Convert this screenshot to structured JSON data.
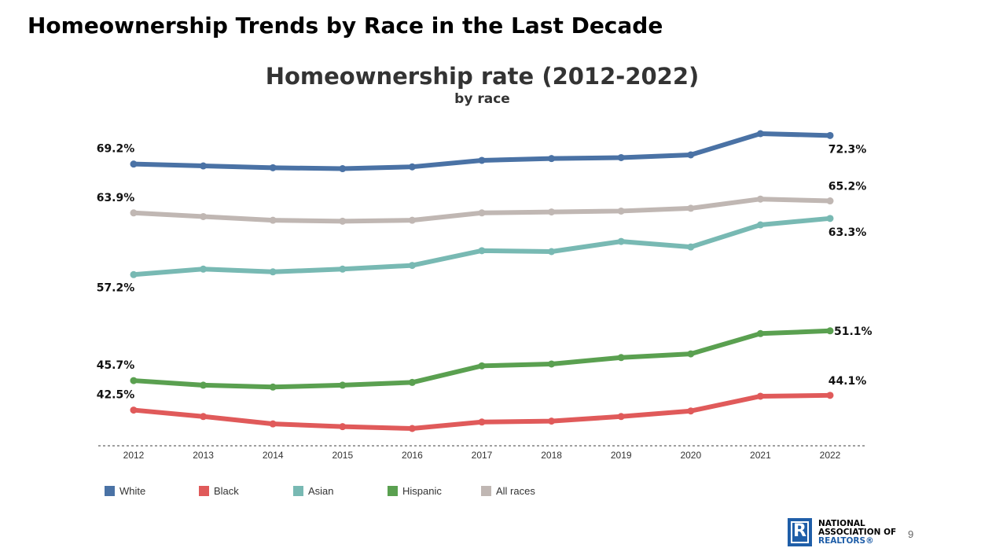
{
  "slide": {
    "title": "Homeownership Trends by Race in the Last Decade",
    "page_number": "9"
  },
  "logo": {
    "line1": "NATIONAL",
    "line2": "ASSOCIATION OF",
    "line3": "REALTORS®",
    "mark": "R"
  },
  "chart_data": {
    "type": "line",
    "title": "Homeownership rate (2012-2022)",
    "subtitle": "by race",
    "xlabel": "",
    "ylabel": "",
    "x": [
      "2012",
      "2013",
      "2014",
      "2015",
      "2016",
      "2017",
      "2018",
      "2019",
      "2020",
      "2021",
      "2022"
    ],
    "ylim": [
      38,
      74
    ],
    "grid": false,
    "legend_position": "bottom",
    "series": [
      {
        "name": "White",
        "color": "#4a72a5",
        "values": [
          69.2,
          69.0,
          68.8,
          68.7,
          68.9,
          69.6,
          69.8,
          69.9,
          70.2,
          72.5,
          72.3
        ],
        "start_label": "69.2%",
        "end_label": "72.3%",
        "end_label_side": "below"
      },
      {
        "name": "Black",
        "color": "#e05a5a",
        "values": [
          42.5,
          41.8,
          41.0,
          40.7,
          40.5,
          41.2,
          41.3,
          41.8,
          42.4,
          44.0,
          44.1
        ],
        "start_label": "42.5%",
        "end_label": "44.1%",
        "end_label_side": "above"
      },
      {
        "name": "Asian",
        "color": "#78b9b3",
        "values": [
          57.2,
          57.8,
          57.5,
          57.8,
          58.2,
          59.8,
          59.7,
          60.8,
          60.2,
          62.6,
          63.3
        ],
        "start_label": "57.2%",
        "end_label": "63.3%",
        "end_label_side": "below"
      },
      {
        "name": "Hispanic",
        "color": "#5aa050",
        "values": [
          45.7,
          45.2,
          45.0,
          45.2,
          45.5,
          47.3,
          47.5,
          48.2,
          48.6,
          50.8,
          51.1
        ],
        "start_label": "45.7%",
        "end_label": "51.1%",
        "end_label_side": "right"
      },
      {
        "name": "All races",
        "color": "#c0b7b3",
        "values": [
          63.9,
          63.5,
          63.1,
          63.0,
          63.1,
          63.9,
          64.0,
          64.1,
          64.4,
          65.4,
          65.2
        ],
        "start_label": "63.9%",
        "end_label": "65.2%",
        "end_label_side": "above"
      }
    ]
  }
}
